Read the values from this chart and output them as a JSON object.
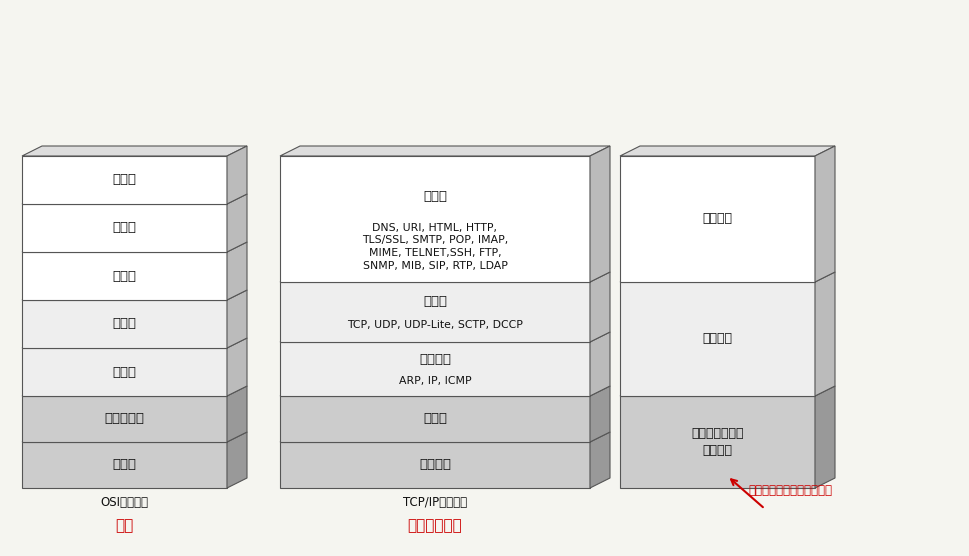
{
  "fig_width": 9.7,
  "fig_height": 5.56,
  "bg_color": "#f5f5f0",
  "osi_layers": [
    {
      "name": "应用层",
      "color": "#ffffff",
      "gray": false
    },
    {
      "name": "表示层",
      "color": "#ffffff",
      "gray": false
    },
    {
      "name": "会话层",
      "color": "#ffffff",
      "gray": false
    },
    {
      "name": "传输层",
      "color": "#eeeeee",
      "gray": false
    },
    {
      "name": "网络层",
      "color": "#eeeeee",
      "gray": false
    },
    {
      "name": "数据链路层",
      "color": "#cccccc",
      "gray": true
    },
    {
      "name": "物理层",
      "color": "#cccccc",
      "gray": true
    }
  ],
  "tcpip_layers": [
    {
      "name": "应用层",
      "sub": "DNS, URI, HTML, HTTP,\nTLS/SSL, SMTP, POP, IMAP,\nMIME, TELNET,SSH, FTP,\nSNMP, MIB, SIP, RTP, LDAP",
      "color": "#ffffff",
      "gray": false,
      "tall": true
    },
    {
      "name": "传输层",
      "sub": "TCP, UDP, UDP-Lite, SCTP, DCCP",
      "color": "#eeeeee",
      "gray": false,
      "tall": false
    },
    {
      "name": "互联网层",
      "sub": "ARP, IP, ICMP",
      "color": "#eeeeee",
      "gray": false,
      "tall": false
    },
    {
      "name": "网卡层",
      "sub": "",
      "color": "#cccccc",
      "gray": true,
      "tall": false
    },
    {
      "name": "（硬件）",
      "sub": "",
      "color": "#cccccc",
      "gray": true,
      "tall": false
    }
  ],
  "right_layers": [
    {
      "name": "应用程序",
      "color": "#ffffff",
      "gray": false
    },
    {
      "name": "操作系统",
      "color": "#eeeeee",
      "gray": false
    },
    {
      "name": "设备驱动程序与\n网络接口",
      "color": "#cccccc",
      "gray": true
    }
  ],
  "label_osi": "OSI参考模型",
  "label_osi_sub": "七层",
  "label_tcpip": "TCP/IP分层模型",
  "label_tcpip_sub": "五层（四层）",
  "label_right": "操作系统与应用程序的层次",
  "red_color": "#cc0000",
  "edge_color": "#555555",
  "top_face_color": "#dddddd",
  "right_face_color": "#bbbbbb",
  "top_face_color_gray": "#bbbbbb",
  "right_face_color_gray": "#999999"
}
